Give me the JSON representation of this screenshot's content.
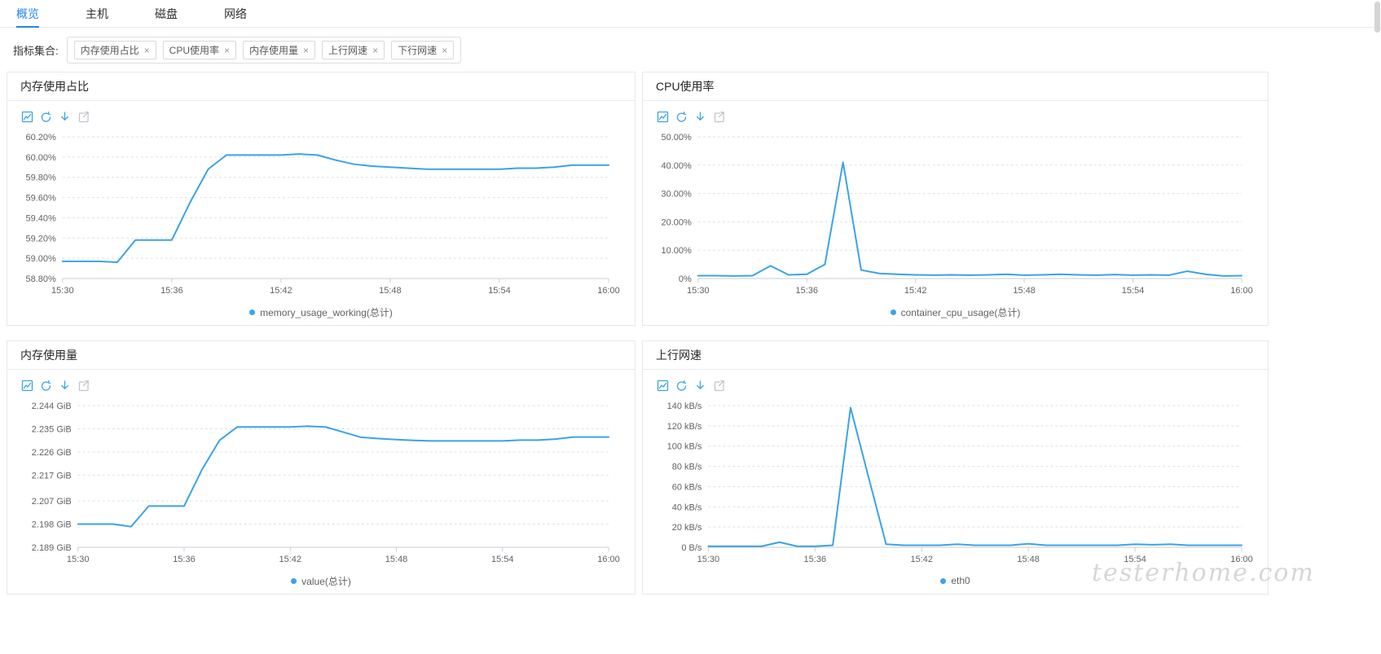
{
  "page": {
    "watermark": "testerhome.com"
  },
  "colors": {
    "accent": "#2486e4",
    "line": "#3ca2e8",
    "axis": "#c9ccd4",
    "grid": "#e0e0e0",
    "tick_text": "#606266"
  },
  "tabs": [
    {
      "label": "概览",
      "active": true
    },
    {
      "label": "主机",
      "active": false
    },
    {
      "label": "磁盘",
      "active": false
    },
    {
      "label": "网络",
      "active": false
    }
  ],
  "filter": {
    "label": "指标集合:",
    "close_glyph": "×",
    "tags": [
      {
        "label": "内存使用占比"
      },
      {
        "label": "CPU使用率"
      },
      {
        "label": "内存使用量"
      },
      {
        "label": "上行网速"
      },
      {
        "label": "下行网速"
      }
    ]
  },
  "panel_tools": [
    "chart-icon",
    "refresh-icon",
    "download-icon",
    "export-icon"
  ],
  "panels": [
    {
      "title": "内存使用占比",
      "legend": "memory_usage_working(总计)"
    },
    {
      "title": "CPU使用率",
      "legend": "container_cpu_usage(总计)"
    },
    {
      "title": "内存使用量",
      "legend": "value(总计)"
    },
    {
      "title": "上行网速",
      "legend": "eth0"
    }
  ],
  "chart_data": [
    {
      "type": "line",
      "title": "内存使用占比",
      "x_axis": "time (15:30–16:00, 1 min steps)",
      "grid": "dotted-horizontal",
      "legend_position": "bottom",
      "ylim": [
        58.8,
        60.2
      ],
      "yticks": [
        {
          "v": 58.8,
          "label": "58.80%"
        },
        {
          "v": 59.0,
          "label": "59.00%"
        },
        {
          "v": 59.2,
          "label": "59.20%"
        },
        {
          "v": 59.4,
          "label": "59.40%"
        },
        {
          "v": 59.6,
          "label": "59.60%"
        },
        {
          "v": 59.8,
          "label": "59.80%"
        },
        {
          "v": 60.0,
          "label": "60.00%"
        },
        {
          "v": 60.2,
          "label": "60.20%"
        }
      ],
      "xticks": [
        {
          "x": 0,
          "label": "15:30"
        },
        {
          "x": 6,
          "label": "15:36"
        },
        {
          "x": 12,
          "label": "15:42"
        },
        {
          "x": 18,
          "label": "15:48"
        },
        {
          "x": 24,
          "label": "15:54"
        },
        {
          "x": 30,
          "label": "16:00"
        }
      ],
      "series": [
        {
          "name": "memory_usage_working(总计)",
          "x": [
            0,
            1,
            2,
            3,
            4,
            5,
            6,
            7,
            8,
            9,
            10,
            11,
            12,
            13,
            14,
            15,
            16,
            17,
            18,
            19,
            20,
            21,
            22,
            23,
            24,
            25,
            26,
            27,
            28,
            29,
            30
          ],
          "values": [
            58.97,
            58.97,
            58.97,
            58.96,
            59.18,
            59.18,
            59.18,
            59.55,
            59.88,
            60.02,
            60.02,
            60.02,
            60.02,
            60.03,
            60.02,
            59.97,
            59.93,
            59.91,
            59.9,
            59.89,
            59.88,
            59.88,
            59.88,
            59.88,
            59.88,
            59.89,
            59.89,
            59.9,
            59.92,
            59.92,
            59.92
          ]
        }
      ]
    },
    {
      "type": "line",
      "title": "CPU使用率",
      "x_axis": "time (15:30–16:00, 1 min steps)",
      "grid": "dotted-horizontal",
      "legend_position": "bottom",
      "ylim": [
        0,
        50
      ],
      "yticks": [
        {
          "v": 0,
          "label": "0%"
        },
        {
          "v": 10,
          "label": "10.00%"
        },
        {
          "v": 20,
          "label": "20.00%"
        },
        {
          "v": 30,
          "label": "30.00%"
        },
        {
          "v": 40,
          "label": "40.00%"
        },
        {
          "v": 50,
          "label": "50.00%"
        }
      ],
      "xticks": [
        {
          "x": 0,
          "label": "15:30"
        },
        {
          "x": 6,
          "label": "15:36"
        },
        {
          "x": 12,
          "label": "15:42"
        },
        {
          "x": 18,
          "label": "15:48"
        },
        {
          "x": 24,
          "label": "15:54"
        },
        {
          "x": 30,
          "label": "16:00"
        }
      ],
      "series": [
        {
          "name": "container_cpu_usage(总计)",
          "x": [
            0,
            1,
            2,
            3,
            4,
            5,
            6,
            7,
            8,
            9,
            10,
            11,
            12,
            13,
            14,
            15,
            16,
            17,
            18,
            19,
            20,
            21,
            22,
            23,
            24,
            25,
            26,
            27,
            28,
            29,
            30
          ],
          "values": [
            1,
            1,
            0.9,
            1,
            4.5,
            1.3,
            1.5,
            5,
            41,
            3,
            1.8,
            1.5,
            1.3,
            1.2,
            1.3,
            1.2,
            1.3,
            1.5,
            1.2,
            1.3,
            1.5,
            1.3,
            1.2,
            1.4,
            1.2,
            1.3,
            1.2,
            2.6,
            1.5,
            0.9,
            1
          ]
        }
      ]
    },
    {
      "type": "line",
      "title": "内存使用量",
      "x_axis": "time (15:30–16:00, 1 min steps)",
      "grid": "dotted-horizontal",
      "legend_position": "bottom",
      "ylim": [
        2.189,
        2.244
      ],
      "yticks": [
        {
          "v": 2.189,
          "label": "2.189 GiB"
        },
        {
          "v": 2.198,
          "label": "2.198 GiB"
        },
        {
          "v": 2.207,
          "label": "2.207 GiB"
        },
        {
          "v": 2.217,
          "label": "2.217 GiB"
        },
        {
          "v": 2.226,
          "label": "2.226 GiB"
        },
        {
          "v": 2.235,
          "label": "2.235 GiB"
        },
        {
          "v": 2.244,
          "label": "2.244 GiB"
        }
      ],
      "xticks": [
        {
          "x": 0,
          "label": "15:30"
        },
        {
          "x": 6,
          "label": "15:36"
        },
        {
          "x": 12,
          "label": "15:42"
        },
        {
          "x": 18,
          "label": "15:48"
        },
        {
          "x": 24,
          "label": "15:54"
        },
        {
          "x": 30,
          "label": "16:00"
        }
      ],
      "series": [
        {
          "name": "value(总计)",
          "x": [
            0,
            1,
            2,
            3,
            4,
            5,
            6,
            7,
            8,
            9,
            10,
            11,
            12,
            13,
            14,
            15,
            16,
            17,
            18,
            19,
            20,
            21,
            22,
            23,
            24,
            25,
            26,
            27,
            28,
            29,
            30
          ],
          "values": [
            2.198,
            2.198,
            2.198,
            2.197,
            2.205,
            2.205,
            2.205,
            2.219,
            2.2305,
            2.2357,
            2.2357,
            2.2357,
            2.2357,
            2.236,
            2.2357,
            2.2337,
            2.2317,
            2.2312,
            2.2308,
            2.2305,
            2.2303,
            2.2303,
            2.2303,
            2.2303,
            2.2303,
            2.2306,
            2.2306,
            2.231,
            2.2318,
            2.2318,
            2.2318
          ]
        }
      ]
    },
    {
      "type": "line",
      "title": "上行网速",
      "x_axis": "time (15:30–16:00, 1 min steps)",
      "grid": "dotted-horizontal",
      "legend_position": "bottom",
      "ylim": [
        0,
        140
      ],
      "yticks": [
        {
          "v": 0,
          "label": "0 B/s"
        },
        {
          "v": 20,
          "label": "20 kB/s"
        },
        {
          "v": 40,
          "label": "40 kB/s"
        },
        {
          "v": 60,
          "label": "60 kB/s"
        },
        {
          "v": 80,
          "label": "80 kB/s"
        },
        {
          "v": 100,
          "label": "100 kB/s"
        },
        {
          "v": 120,
          "label": "120 kB/s"
        },
        {
          "v": 140,
          "label": "140 kB/s"
        }
      ],
      "xticks": [
        {
          "x": 0,
          "label": "15:30"
        },
        {
          "x": 6,
          "label": "15:36"
        },
        {
          "x": 12,
          "label": "15:42"
        },
        {
          "x": 18,
          "label": "15:48"
        },
        {
          "x": 24,
          "label": "15:54"
        },
        {
          "x": 30,
          "label": "16:00"
        }
      ],
      "series": [
        {
          "name": "eth0",
          "x": [
            0,
            1,
            2,
            3,
            4,
            5,
            6,
            7,
            8,
            9,
            10,
            11,
            12,
            13,
            14,
            15,
            16,
            17,
            18,
            19,
            20,
            21,
            22,
            23,
            24,
            25,
            26,
            27,
            28,
            29,
            30
          ],
          "values": [
            1,
            1,
            1,
            1,
            5,
            1,
            1,
            2,
            138,
            70,
            3,
            2,
            2,
            2,
            3,
            2,
            2,
            2,
            3.5,
            2,
            2,
            2,
            2,
            2,
            3,
            2.5,
            3,
            2,
            2,
            2,
            2
          ]
        }
      ]
    }
  ]
}
